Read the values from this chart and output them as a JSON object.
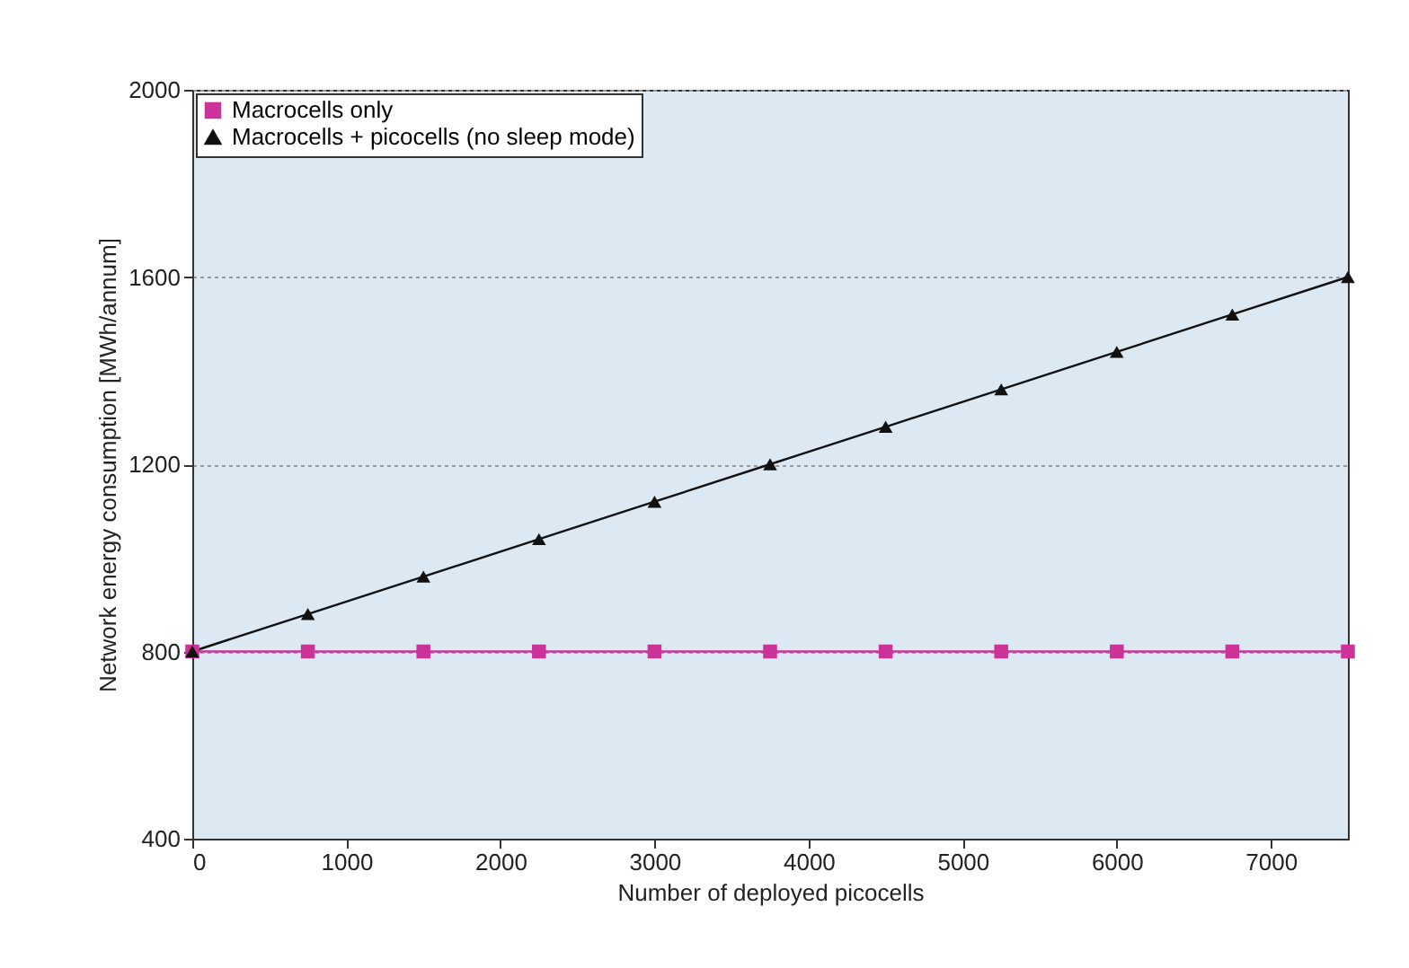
{
  "chart_data": {
    "type": "line",
    "xlabel": "Number of deployed picocells",
    "ylabel": "Network energy consumption [MWh/annum]",
    "x": [
      0,
      750,
      1500,
      2250,
      3000,
      3750,
      4500,
      5250,
      6000,
      6750,
      7500
    ],
    "series": [
      {
        "name": "Macrocells only",
        "color": "#cc3399",
        "marker": "square",
        "values": [
          800,
          800,
          800,
          800,
          800,
          800,
          800,
          800,
          800,
          800,
          800
        ]
      },
      {
        "name": "Macrocells + picocells (no sleep mode)",
        "color": "#111111",
        "marker": "triangle",
        "values": [
          800,
          880,
          960,
          1040,
          1120,
          1200,
          1280,
          1360,
          1440,
          1520,
          1600
        ]
      }
    ],
    "xlim": [
      0,
      7500
    ],
    "xticks": [
      0,
      1000,
      2000,
      3000,
      4000,
      5000,
      6000,
      7000
    ],
    "ylim": [
      400,
      2000
    ],
    "yticks": [
      400,
      800,
      1200,
      1600,
      2000
    ],
    "grid": "y",
    "legend": "top left",
    "line_style": "solid"
  }
}
